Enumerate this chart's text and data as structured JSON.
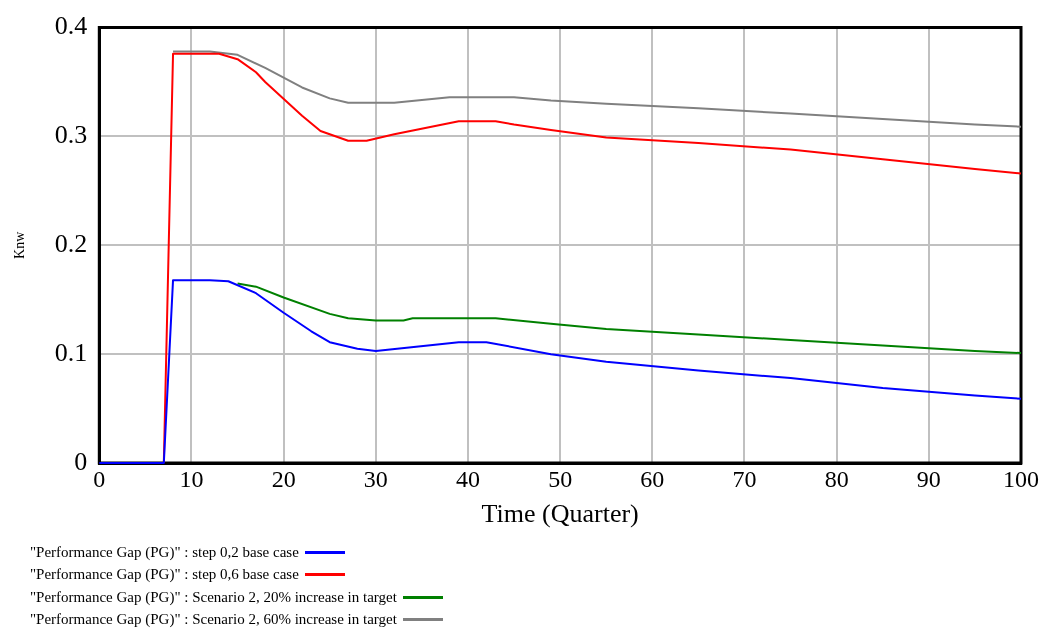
{
  "chart_data": {
    "type": "line",
    "xlabel": "Time (Quarter)",
    "ylabel": "Knw",
    "xlim": [
      0,
      100
    ],
    "xticks": [
      0,
      10,
      20,
      30,
      40,
      50,
      60,
      70,
      80,
      90,
      100
    ],
    "ylim": [
      0,
      0.4
    ],
    "yticks": [
      0,
      0.1,
      0.2,
      0.3,
      0.4
    ],
    "grid": true,
    "legend": "bottom",
    "marker": "none",
    "line_style": "solid",
    "series": [
      {
        "name": "\"Performance Gap (PG)\" : step 0,2 base case",
        "color": "#0000ff",
        "x": [
          0,
          7,
          8,
          12,
          14,
          17,
          20,
          23,
          25,
          28,
          30,
          39,
          42,
          49,
          55,
          65,
          75,
          85,
          95,
          100
        ],
        "values": [
          0,
          0,
          0.168,
          0.168,
          0.167,
          0.156,
          0.138,
          0.121,
          0.111,
          0.105,
          0.103,
          0.111,
          0.111,
          0.1,
          0.093,
          0.085,
          0.078,
          0.069,
          0.062,
          0.059
        ]
      },
      {
        "name": "\"Performance Gap (PG)\" : step 0,6 base case",
        "color": "#ff0000",
        "x": [
          7,
          8,
          13,
          15,
          17,
          18,
          22,
          24,
          27,
          29,
          32,
          39,
          43,
          45,
          49,
          55,
          65,
          75,
          85,
          95,
          100
        ],
        "values": [
          0,
          0.376,
          0.376,
          0.371,
          0.359,
          0.35,
          0.319,
          0.305,
          0.296,
          0.296,
          0.302,
          0.314,
          0.314,
          0.311,
          0.306,
          0.299,
          0.294,
          0.288,
          0.279,
          0.27,
          0.266
        ]
      },
      {
        "name": "\"Performance Gap (PG)\" : Scenario 2, 20% increase in target",
        "color": "#008000",
        "x": [
          15,
          17,
          20,
          25,
          27,
          30,
          33,
          34,
          43,
          49,
          55,
          65,
          75,
          85,
          95,
          100
        ],
        "values": [
          0.165,
          0.162,
          0.152,
          0.137,
          0.133,
          0.131,
          0.131,
          0.133,
          0.133,
          0.128,
          0.123,
          0.118,
          0.113,
          0.108,
          0.103,
          0.101
        ]
      },
      {
        "name": "\"Performance Gap (PG)\" : Scenario 2, 60% increase in target",
        "color": "#808080",
        "x": [
          8,
          12,
          15,
          18,
          22,
          25,
          27,
          32,
          38,
          45,
          49,
          55,
          65,
          75,
          85,
          95,
          100
        ],
        "values": [
          0.378,
          0.378,
          0.375,
          0.363,
          0.345,
          0.335,
          0.331,
          0.331,
          0.336,
          0.336,
          0.333,
          0.33,
          0.326,
          0.321,
          0.316,
          0.311,
          0.309
        ]
      }
    ]
  }
}
